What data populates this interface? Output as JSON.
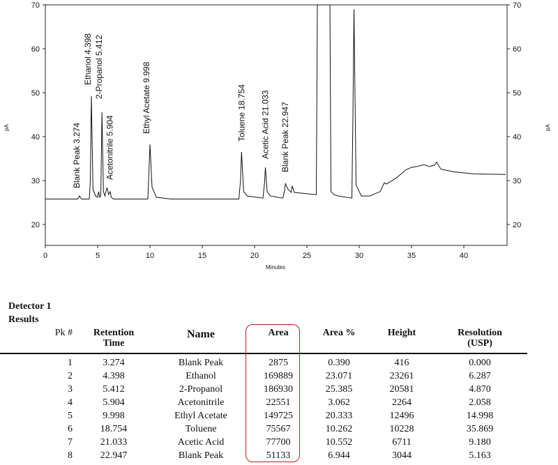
{
  "chart_data": {
    "type": "line",
    "title": "",
    "xlabel": "Minutes",
    "ylabel": "pA",
    "ylabel_right": "pA",
    "xlim": [
      0,
      44
    ],
    "ylim": [
      15,
      70
    ],
    "x_ticks": [
      0,
      5,
      10,
      15,
      20,
      25,
      30,
      35,
      40
    ],
    "y_ticks": [
      20,
      30,
      40,
      50,
      60,
      70
    ],
    "grid": false,
    "baseline_pA": 25.8,
    "peaks": [
      {
        "name": "Blank Peak",
        "rt": 3.274,
        "label": "Blank Peak  3.274",
        "apex_pA": 26.5
      },
      {
        "name": "Ethanol",
        "rt": 4.398,
        "label": "Ethanol  4.398",
        "apex_pA": 49.2
      },
      {
        "name": "2-Propanol",
        "rt": 5.412,
        "label": "2-Propanol  5.412",
        "apex_pA": 45.5
      },
      {
        "name": "Acetonitrile",
        "rt": 5.904,
        "label": "Acetonitrile  5.904",
        "apex_pA": 28.3
      },
      {
        "name": "Ethyl Acetate",
        "rt": 9.998,
        "label": "Ethyl Acetate  9.998",
        "apex_pA": 38.2
      },
      {
        "name": "Toluene",
        "rt": 18.754,
        "label": "Toluene  18.754",
        "apex_pA": 36.5
      },
      {
        "name": "Acetic Acid",
        "rt": 21.033,
        "label": "Acetic Acid  21.033",
        "apex_pA": 33.0
      },
      {
        "name": "Blank Peak",
        "rt": 22.947,
        "label": "Blank Peak  22.947",
        "apex_pA": 29.3
      }
    ],
    "unlabeled_features": [
      {
        "rt": 26.0,
        "apex_pA": 70,
        "note": "off-scale solvent peak"
      },
      {
        "rt": 29.5,
        "apex_pA": 69.0,
        "note": "large unlabeled peak"
      }
    ],
    "trace": {
      "x": [
        0,
        3.1,
        3.27,
        3.45,
        4.2,
        4.3,
        4.398,
        4.55,
        4.8,
        5.0,
        5.1,
        5.2,
        5.3,
        5.412,
        5.55,
        5.7,
        5.8,
        5.904,
        6.05,
        6.2,
        6.3,
        6.5,
        9.8,
        9.9,
        9.998,
        10.2,
        10.6,
        12,
        18.5,
        18.65,
        18.754,
        18.95,
        19.3,
        20.8,
        20.95,
        21.033,
        21.2,
        21.5,
        22.7,
        22.85,
        22.947,
        23.2,
        23.5,
        23.6,
        23.8,
        25.9,
        26.0,
        27.2,
        27.3,
        27.6,
        28.0,
        29.3,
        29.4,
        29.5,
        29.7,
        30.2,
        31,
        32.0,
        32.4,
        32.6,
        33.5,
        34.5,
        35.0,
        35.5,
        36.2,
        36.7,
        37.2,
        37.4,
        37.8,
        39,
        41,
        44
      ],
      "y": [
        25.8,
        25.8,
        26.5,
        25.8,
        25.8,
        30,
        49.2,
        28,
        26.5,
        26.2,
        27.5,
        26.2,
        26.5,
        45.5,
        27.5,
        26.5,
        27.6,
        28.3,
        26.8,
        27.5,
        26.2,
        25.8,
        25.8,
        32,
        38.2,
        28.5,
        26.2,
        25.8,
        25.8,
        30,
        36.5,
        27.5,
        26.5,
        26.0,
        29.5,
        33.0,
        27.5,
        26.5,
        26.0,
        27.5,
        29.3,
        28.0,
        27.3,
        28.8,
        27.3,
        26.8,
        70,
        70,
        27.5,
        26.8,
        26.5,
        26.0,
        45,
        69.0,
        29,
        26.5,
        26.5,
        27.5,
        29.5,
        29.2,
        30.5,
        32.5,
        33.0,
        33.2,
        33.6,
        33.2,
        33.5,
        34.2,
        32.6,
        32.0,
        31.5,
        31.4
      ]
    }
  },
  "chart_labels": {
    "x_ticks": [
      "0",
      "5",
      "10",
      "15",
      "20",
      "25",
      "30",
      "35",
      "40"
    ],
    "y_ticks": [
      "20",
      "30",
      "40",
      "50",
      "60",
      "70"
    ],
    "xlabel": "Minutes",
    "ylabel": "pA"
  },
  "results": {
    "detector_title": "Detector 1",
    "section_title": "Results",
    "columns": {
      "pk": "Pk #",
      "rt_line1": "Retention",
      "rt_line2": "Time",
      "name": "Name",
      "area": "Area",
      "area_pct": "Area %",
      "height": "Height",
      "res_line1": "Resolution",
      "res_line2": "(USP)"
    },
    "rows": [
      {
        "pk": "1",
        "rt": "3.274",
        "name": "Blank Peak",
        "area": "2875",
        "area_pct": "0.390",
        "height": "416",
        "resolution": "0.000"
      },
      {
        "pk": "2",
        "rt": "4.398",
        "name": "Ethanol",
        "area": "169889",
        "area_pct": "23.071",
        "height": "23261",
        "resolution": "6.287"
      },
      {
        "pk": "3",
        "rt": "5.412",
        "name": "2-Propanol",
        "area": "186930",
        "area_pct": "25.385",
        "height": "20581",
        "resolution": "4.870"
      },
      {
        "pk": "4",
        "rt": "5.904",
        "name": "Acetonitrile",
        "area": "22551",
        "area_pct": "3.062",
        "height": "2264",
        "resolution": "2.058"
      },
      {
        "pk": "5",
        "rt": "9.998",
        "name": "Ethyl Acetate",
        "area": "149725",
        "area_pct": "20.333",
        "height": "12496",
        "resolution": "14.998"
      },
      {
        "pk": "6",
        "rt": "18.754",
        "name": "Toluene",
        "area": "75567",
        "area_pct": "10.262",
        "height": "10228",
        "resolution": "35.869"
      },
      {
        "pk": "7",
        "rt": "21.033",
        "name": "Acetic Acid",
        "area": "77700",
        "area_pct": "10.552",
        "height": "6711",
        "resolution": "9.180"
      },
      {
        "pk": "8",
        "rt": "22.947",
        "name": "Blank Peak",
        "area": "51133",
        "area_pct": "6.944",
        "height": "3044",
        "resolution": "5.163"
      }
    ],
    "highlight_color": "#b22222"
  }
}
